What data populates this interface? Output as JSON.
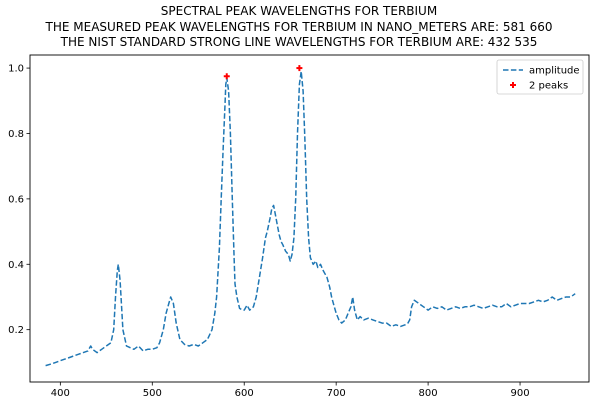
{
  "chart_data": {
    "type": "line",
    "title_lines": [
      "SPECTRAL PEAK WAVELENGTHS FOR TERBIUM",
      "THE MEASURED PEAK WAVELENGTHS FOR TERBIUM IN NANO_METERS ARE: 581 660",
      "THE NIST STANDARD STRONG LINE WAVELENGTHS FOR TERBIUM ARE: 432 535"
    ],
    "xlim": [
      367,
      975
    ],
    "ylim": [
      0.04,
      1.04
    ],
    "x_ticks": [
      400,
      500,
      600,
      700,
      800,
      900
    ],
    "y_ticks": [
      0.2,
      0.4,
      0.6,
      0.8,
      1.0
    ],
    "x_tick_labels": [
      "400",
      "500",
      "600",
      "700",
      "800",
      "900"
    ],
    "y_tick_labels": [
      "0.2",
      "0.4",
      "0.6",
      "0.8",
      "1.0"
    ],
    "legend_position": "top-right",
    "series": [
      {
        "name": "amplitude",
        "style": "dashed-line",
        "color": "#1f77b4",
        "x": [
          384,
          390,
          395,
          400,
          405,
          410,
          415,
          420,
          425,
          430,
          433,
          435,
          440,
          445,
          450,
          455,
          458,
          460,
          462,
          463,
          465,
          468,
          472,
          476,
          480,
          485,
          490,
          495,
          500,
          505,
          508,
          512,
          515,
          518,
          520,
          523,
          526,
          530,
          535,
          540,
          545,
          550,
          555,
          560,
          565,
          568,
          570,
          573,
          575,
          577,
          579,
          580,
          581,
          583,
          585,
          587,
          589,
          590,
          592,
          595,
          598,
          600,
          603,
          606,
          610,
          613,
          616,
          620,
          623,
          625,
          628,
          630,
          632,
          634,
          636,
          638,
          640,
          642,
          645,
          648,
          650,
          652,
          654,
          656,
          658,
          660,
          662,
          664,
          666,
          668,
          670,
          672,
          675,
          678,
          680,
          683,
          686,
          690,
          693,
          695,
          698,
          700,
          703,
          706,
          710,
          713,
          716,
          718,
          720,
          723,
          726,
          730,
          735,
          740,
          745,
          750,
          755,
          760,
          765,
          770,
          775,
          778,
          780,
          782,
          785,
          790,
          795,
          800,
          805,
          810,
          815,
          820,
          825,
          830,
          835,
          840,
          845,
          850,
          855,
          860,
          865,
          870,
          875,
          880,
          885,
          890,
          895,
          900,
          905,
          910,
          915,
          920,
          925,
          930,
          935,
          940,
          945,
          950,
          955,
          960
        ],
        "y": [
          0.09,
          0.095,
          0.1,
          0.105,
          0.11,
          0.115,
          0.12,
          0.125,
          0.13,
          0.135,
          0.15,
          0.14,
          0.13,
          0.14,
          0.15,
          0.16,
          0.2,
          0.3,
          0.38,
          0.4,
          0.35,
          0.2,
          0.15,
          0.145,
          0.14,
          0.15,
          0.135,
          0.14,
          0.14,
          0.145,
          0.16,
          0.2,
          0.25,
          0.28,
          0.3,
          0.28,
          0.22,
          0.17,
          0.155,
          0.15,
          0.155,
          0.15,
          0.16,
          0.17,
          0.2,
          0.25,
          0.3,
          0.45,
          0.6,
          0.75,
          0.88,
          0.95,
          0.97,
          0.93,
          0.8,
          0.6,
          0.42,
          0.34,
          0.3,
          0.265,
          0.26,
          0.26,
          0.275,
          0.26,
          0.27,
          0.3,
          0.35,
          0.42,
          0.48,
          0.5,
          0.54,
          0.57,
          0.58,
          0.55,
          0.52,
          0.49,
          0.47,
          0.46,
          0.44,
          0.43,
          0.41,
          0.43,
          0.48,
          0.6,
          0.8,
          0.95,
          0.99,
          0.93,
          0.78,
          0.6,
          0.48,
          0.42,
          0.4,
          0.41,
          0.39,
          0.4,
          0.38,
          0.36,
          0.33,
          0.3,
          0.27,
          0.25,
          0.23,
          0.22,
          0.23,
          0.25,
          0.27,
          0.3,
          0.26,
          0.23,
          0.24,
          0.23,
          0.235,
          0.23,
          0.225,
          0.22,
          0.22,
          0.21,
          0.215,
          0.21,
          0.215,
          0.22,
          0.23,
          0.27,
          0.29,
          0.28,
          0.27,
          0.26,
          0.27,
          0.265,
          0.27,
          0.26,
          0.265,
          0.27,
          0.265,
          0.27,
          0.27,
          0.275,
          0.27,
          0.265,
          0.27,
          0.275,
          0.27,
          0.27,
          0.28,
          0.27,
          0.275,
          0.28,
          0.28,
          0.28,
          0.285,
          0.29,
          0.285,
          0.29,
          0.3,
          0.29,
          0.295,
          0.3,
          0.3,
          0.31
        ]
      },
      {
        "name": "2 peaks",
        "style": "plus-marker",
        "color": "#ff0000",
        "x": [
          581,
          660
        ],
        "y": [
          0.975,
          1.0
        ]
      }
    ]
  }
}
